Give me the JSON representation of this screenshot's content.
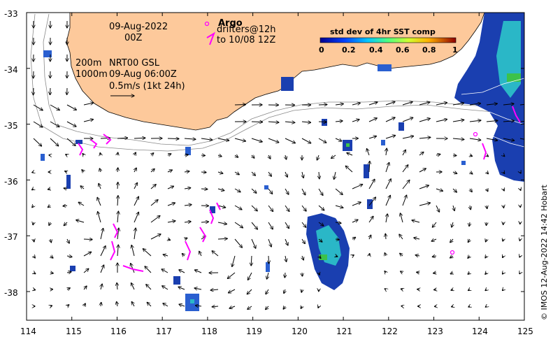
{
  "date_line1": "09-Aug-2022",
  "date_line2": "00Z",
  "depth_line1_a": "200m",
  "depth_line1_b": "NRT00 GSL",
  "depth_line2_a": "1000m",
  "depth_line2_b": "09-Aug 06:00Z",
  "scale_label": "0.5m/s (1kt 24h)",
  "argo_label": "Argo",
  "drifters_line1": "drifters@12h",
  "drifters_line2": "to 10/08 12Z",
  "colorbar": {
    "title": "std dev of 4hr SST comp",
    "ticks": [
      "0",
      "0.2",
      "0.4",
      "0.6",
      "0.8",
      "1"
    ]
  },
  "y_ticks": [
    "-33",
    "-34",
    "-35",
    "-36",
    "-37",
    "-38"
  ],
  "x_ticks": [
    "114",
    "115",
    "116",
    "117",
    "118",
    "119",
    "120",
    "121",
    "122",
    "123",
    "124",
    "125"
  ],
  "credit": "© IMOS 12-Aug-2022 14:42 Hobart",
  "colors": {
    "land": "#fdc99b",
    "drifter": "#ff00ff",
    "sst_blue": "#1a3fb0",
    "sst_cyan": "#2ab7c7",
    "sst_green": "#3cc24a"
  },
  "map_extent": {
    "lon": [
      114,
      125
    ],
    "lat": [
      -38.5,
      -33
    ]
  }
}
